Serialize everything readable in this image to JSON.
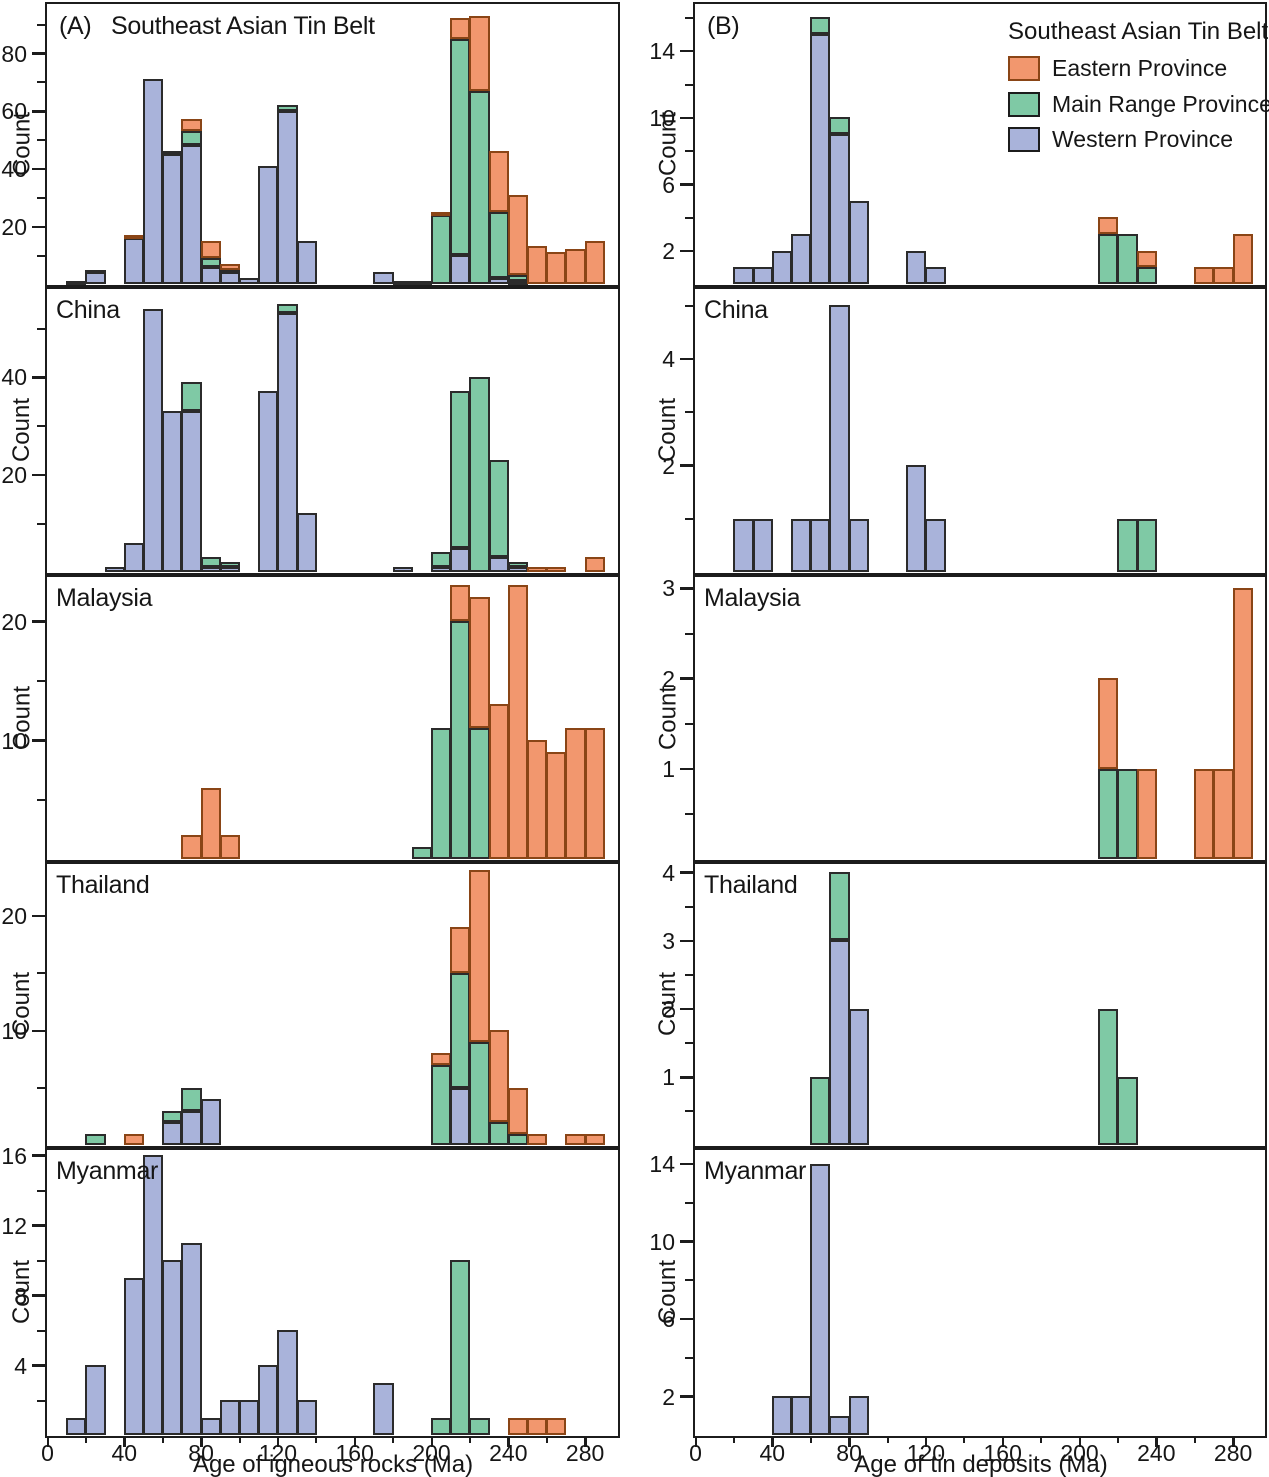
{
  "figure": {
    "panel_a_label": "(A)",
    "panel_a_title": "Southeast Asian Tin Belt",
    "panel_b_label": "(B)",
    "ylabel": "Count",
    "xlabel_left": "Age of igneous rocks (Ma)",
    "xlabel_right": "Age of tin deposits (Ma)",
    "xaxis_ticks": [
      0,
      40,
      80,
      120,
      160,
      200,
      240,
      280
    ],
    "colors": {
      "eastern": "#F2976E",
      "main_range": "#7FC9A5",
      "western": "#A9B3DA"
    },
    "legend": {
      "title": "Southeast Asian Tin Belt",
      "items": [
        {
          "label": "Eastern Province",
          "series": "east",
          "color": "#F2976E"
        },
        {
          "label": "Main Range Province",
          "series": "main",
          "color": "#7FC9A5"
        },
        {
          "label": "Western Province",
          "series": "west",
          "color": "#A9B3DA"
        }
      ]
    }
  },
  "chart_data": [
    {
      "id": "a-seatb",
      "type": "bar",
      "column": "A",
      "row": 0,
      "label": "",
      "note": "stacked 10-Ma histogram; series west=Western Province, main=Main Range Province, east=Eastern Province; x=bin left edge (Ma)",
      "ymax": 97,
      "yticks": [
        20,
        40,
        60,
        80
      ],
      "yminor": [
        10,
        30,
        50,
        70,
        90
      ],
      "bars": [
        {
          "x": 10,
          "west": 1
        },
        {
          "x": 20,
          "west": 4,
          "main": 1
        },
        {
          "x": 40,
          "west": 16,
          "east": 1
        },
        {
          "x": 50,
          "west": 71
        },
        {
          "x": 60,
          "west": 45,
          "main": 1
        },
        {
          "x": 70,
          "west": 48,
          "main": 5,
          "east": 4
        },
        {
          "x": 80,
          "west": 6,
          "main": 3,
          "east": 6
        },
        {
          "x": 90,
          "west": 4,
          "main": 1,
          "east": 2
        },
        {
          "x": 100,
          "west": 2
        },
        {
          "x": 110,
          "west": 41
        },
        {
          "x": 120,
          "west": 60,
          "main": 2
        },
        {
          "x": 130,
          "west": 15
        },
        {
          "x": 170,
          "west": 4
        },
        {
          "x": 180,
          "west": 1
        },
        {
          "x": 190,
          "main": 1
        },
        {
          "x": 200,
          "main": 24,
          "east": 1
        },
        {
          "x": 210,
          "west": 10,
          "main": 75,
          "east": 7
        },
        {
          "x": 220,
          "main": 67,
          "east": 26
        },
        {
          "x": 230,
          "west": 2,
          "main": 23,
          "east": 21
        },
        {
          "x": 240,
          "west": 1,
          "main": 2,
          "east": 28
        },
        {
          "x": 250,
          "east": 13
        },
        {
          "x": 260,
          "east": 11
        },
        {
          "x": 270,
          "east": 12
        },
        {
          "x": 280,
          "east": 15
        }
      ]
    },
    {
      "id": "a-china",
      "type": "bar",
      "column": "A",
      "row": 1,
      "label": "China",
      "ymax": 58,
      "yticks": [
        20,
        40
      ],
      "yminor": [
        10,
        30,
        50
      ],
      "bars": [
        {
          "x": 30,
          "west": 1
        },
        {
          "x": 40,
          "west": 6
        },
        {
          "x": 50,
          "west": 54
        },
        {
          "x": 60,
          "west": 33
        },
        {
          "x": 70,
          "west": 33,
          "main": 6
        },
        {
          "x": 80,
          "west": 1,
          "main": 2
        },
        {
          "x": 90,
          "west": 1,
          "main": 1
        },
        {
          "x": 110,
          "west": 37
        },
        {
          "x": 120,
          "west": 53,
          "main": 2
        },
        {
          "x": 130,
          "west": 12
        },
        {
          "x": 180,
          "west": 1
        },
        {
          "x": 200,
          "west": 1,
          "main": 3
        },
        {
          "x": 210,
          "west": 5,
          "main": 32
        },
        {
          "x": 220,
          "main": 40
        },
        {
          "x": 230,
          "west": 3,
          "main": 20
        },
        {
          "x": 240,
          "west": 1,
          "main": 1
        },
        {
          "x": 250,
          "east": 1
        },
        {
          "x": 260,
          "east": 1
        },
        {
          "x": 280,
          "east": 3
        }
      ]
    },
    {
      "id": "a-malaysia",
      "type": "bar",
      "column": "A",
      "row": 2,
      "label": "Malaysia",
      "ymax": 23.7,
      "yticks": [
        10,
        20
      ],
      "yminor": [
        5,
        15
      ],
      "bars": [
        {
          "x": 70,
          "east": 2
        },
        {
          "x": 80,
          "east": 6
        },
        {
          "x": 90,
          "east": 2
        },
        {
          "x": 190,
          "main": 1
        },
        {
          "x": 200,
          "main": 11
        },
        {
          "x": 210,
          "main": 20,
          "east": 3
        },
        {
          "x": 220,
          "main": 11,
          "east": 11
        },
        {
          "x": 230,
          "east": 13
        },
        {
          "x": 240,
          "east": 23
        },
        {
          "x": 250,
          "east": 10
        },
        {
          "x": 260,
          "east": 9
        },
        {
          "x": 270,
          "east": 11
        },
        {
          "x": 280,
          "east": 11
        }
      ]
    },
    {
      "id": "a-thailand",
      "type": "bar",
      "column": "A",
      "row": 3,
      "label": "Thailand",
      "ymax": 24.5,
      "yticks": [
        10,
        20
      ],
      "yminor": [
        5,
        15
      ],
      "bars": [
        {
          "x": 20,
          "main": 1
        },
        {
          "x": 40,
          "east": 1
        },
        {
          "x": 60,
          "west": 2,
          "main": 1
        },
        {
          "x": 70,
          "west": 3,
          "main": 2
        },
        {
          "x": 80,
          "west": 4
        },
        {
          "x": 200,
          "main": 7,
          "east": 1
        },
        {
          "x": 210,
          "west": 5,
          "main": 10,
          "east": 4
        },
        {
          "x": 220,
          "main": 9,
          "east": 15
        },
        {
          "x": 230,
          "main": 2,
          "east": 8
        },
        {
          "x": 240,
          "main": 1,
          "east": 4
        },
        {
          "x": 250,
          "east": 1
        },
        {
          "x": 270,
          "east": 1
        },
        {
          "x": 280,
          "east": 1
        }
      ]
    },
    {
      "id": "a-myanmar",
      "type": "bar",
      "column": "A",
      "row": 4,
      "label": "Myanmar",
      "ymax": 16.3,
      "yticks": [
        4,
        8,
        12,
        16
      ],
      "yminor": [
        2,
        6,
        10,
        14
      ],
      "bars": [
        {
          "x": 10,
          "west": 1
        },
        {
          "x": 20,
          "west": 4
        },
        {
          "x": 40,
          "west": 9
        },
        {
          "x": 50,
          "west": 16
        },
        {
          "x": 60,
          "west": 10
        },
        {
          "x": 70,
          "west": 11
        },
        {
          "x": 80,
          "west": 1
        },
        {
          "x": 90,
          "west": 2
        },
        {
          "x": 100,
          "west": 2
        },
        {
          "x": 110,
          "west": 4
        },
        {
          "x": 120,
          "west": 6
        },
        {
          "x": 130,
          "west": 2
        },
        {
          "x": 170,
          "west": 3
        },
        {
          "x": 200,
          "main": 1
        },
        {
          "x": 210,
          "main": 10
        },
        {
          "x": 220,
          "main": 1
        },
        {
          "x": 240,
          "east": 1
        },
        {
          "x": 250,
          "east": 1
        },
        {
          "x": 260,
          "east": 1
        }
      ]
    },
    {
      "id": "b-seatb",
      "type": "bar",
      "column": "B",
      "row": 0,
      "label": "",
      "has_legend": true,
      "ymax": 16.8,
      "yticks": [
        2,
        6,
        10,
        14
      ],
      "yminor": [
        4,
        8,
        12,
        16
      ],
      "bars": [
        {
          "x": 20,
          "west": 1
        },
        {
          "x": 30,
          "west": 1
        },
        {
          "x": 40,
          "west": 2
        },
        {
          "x": 50,
          "west": 3
        },
        {
          "x": 60,
          "west": 15,
          "main": 1
        },
        {
          "x": 70,
          "west": 9,
          "main": 1
        },
        {
          "x": 80,
          "west": 5
        },
        {
          "x": 110,
          "west": 2
        },
        {
          "x": 120,
          "west": 1
        },
        {
          "x": 210,
          "main": 3,
          "east": 1
        },
        {
          "x": 220,
          "main": 3
        },
        {
          "x": 230,
          "main": 1,
          "east": 1
        },
        {
          "x": 260,
          "east": 1
        },
        {
          "x": 270,
          "east": 1
        },
        {
          "x": 280,
          "east": 3
        }
      ]
    },
    {
      "id": "b-china",
      "type": "bar",
      "column": "B",
      "row": 1,
      "label": "China",
      "ymax": 5.3,
      "yticks": [
        2,
        4
      ],
      "yminor": [
        1,
        3,
        5
      ],
      "bars": [
        {
          "x": 20,
          "west": 1
        },
        {
          "x": 30,
          "west": 1
        },
        {
          "x": 50,
          "west": 1
        },
        {
          "x": 60,
          "west": 1
        },
        {
          "x": 70,
          "west": 5
        },
        {
          "x": 80,
          "west": 1
        },
        {
          "x": 110,
          "west": 2
        },
        {
          "x": 120,
          "west": 1
        },
        {
          "x": 220,
          "main": 1
        },
        {
          "x": 230,
          "main": 1
        }
      ]
    },
    {
      "id": "b-malaysia",
      "type": "bar",
      "column": "B",
      "row": 2,
      "label": "Malaysia",
      "ymax": 3.12,
      "yticks": [
        1,
        2,
        3
      ],
      "yminor": [
        0.5,
        1.5,
        2.5
      ],
      "bars": [
        {
          "x": 210,
          "main": 1,
          "east": 1
        },
        {
          "x": 220,
          "main": 1
        },
        {
          "x": 230,
          "east": 1
        },
        {
          "x": 260,
          "east": 1
        },
        {
          "x": 270,
          "east": 1
        },
        {
          "x": 280,
          "east": 3
        }
      ]
    },
    {
      "id": "b-thailand",
      "type": "bar",
      "column": "B",
      "row": 3,
      "label": "Thailand",
      "ymax": 4.12,
      "yticks": [
        1,
        2,
        3,
        4
      ],
      "yminor": [
        0.5,
        1.5,
        2.5,
        3.5
      ],
      "bars": [
        {
          "x": 60,
          "main": 1
        },
        {
          "x": 70,
          "west": 3,
          "main": 1
        },
        {
          "x": 80,
          "west": 2
        },
        {
          "x": 210,
          "main": 2
        },
        {
          "x": 220,
          "main": 1
        }
      ]
    },
    {
      "id": "b-myanmar",
      "type": "bar",
      "column": "B",
      "row": 4,
      "label": "Myanmar",
      "ymax": 14.7,
      "yticks": [
        2,
        6,
        10,
        14
      ],
      "yminor": [
        4,
        8,
        12
      ],
      "bars": [
        {
          "x": 40,
          "west": 2
        },
        {
          "x": 50,
          "west": 2
        },
        {
          "x": 60,
          "west": 14
        },
        {
          "x": 70,
          "west": 1
        },
        {
          "x": 80,
          "west": 2
        }
      ]
    }
  ]
}
